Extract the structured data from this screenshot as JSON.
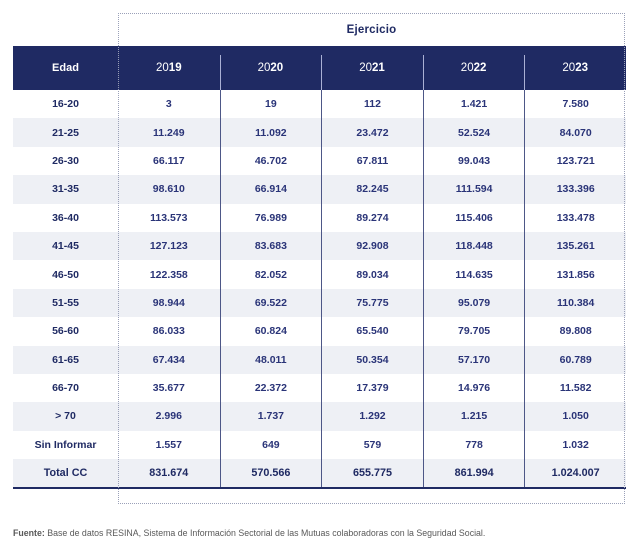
{
  "table": {
    "group_header": "Ejercicio",
    "edad_header": "Edad",
    "years": [
      {
        "light": "20",
        "bold": "19"
      },
      {
        "light": "20",
        "bold": "20"
      },
      {
        "light": "20",
        "bold": "21"
      },
      {
        "light": "20",
        "bold": "22"
      },
      {
        "light": "20",
        "bold": "23"
      }
    ],
    "rows": [
      {
        "label": "16-20",
        "values": [
          "3",
          "19",
          "112",
          "1.421",
          "7.580"
        ]
      },
      {
        "label": "21-25",
        "values": [
          "11.249",
          "11.092",
          "23.472",
          "52.524",
          "84.070"
        ]
      },
      {
        "label": "26-30",
        "values": [
          "66.117",
          "46.702",
          "67.811",
          "99.043",
          "123.721"
        ]
      },
      {
        "label": "31-35",
        "values": [
          "98.610",
          "66.914",
          "82.245",
          "111.594",
          "133.396"
        ]
      },
      {
        "label": "36-40",
        "values": [
          "113.573",
          "76.989",
          "89.274",
          "115.406",
          "133.478"
        ]
      },
      {
        "label": "41-45",
        "values": [
          "127.123",
          "83.683",
          "92.908",
          "118.448",
          "135.261"
        ]
      },
      {
        "label": "46-50",
        "values": [
          "122.358",
          "82.052",
          "89.034",
          "114.635",
          "131.856"
        ]
      },
      {
        "label": "51-55",
        "values": [
          "98.944",
          "69.522",
          "75.775",
          "95.079",
          "110.384"
        ]
      },
      {
        "label": "56-60",
        "values": [
          "86.033",
          "60.824",
          "65.540",
          "79.705",
          "89.808"
        ]
      },
      {
        "label": "61-65",
        "values": [
          "67.434",
          "48.011",
          "50.354",
          "57.170",
          "60.789"
        ]
      },
      {
        "label": "66-70",
        "values": [
          "35.677",
          "22.372",
          "17.379",
          "14.976",
          "11.582"
        ]
      },
      {
        "label": "> 70",
        "values": [
          "2.996",
          "1.737",
          "1.292",
          "1.215",
          "1.050"
        ]
      },
      {
        "label": "Sin Informar",
        "values": [
          "1.557",
          "649",
          "579",
          "778",
          "1.032"
        ]
      },
      {
        "label": "Total CC",
        "values": [
          "831.674",
          "570.566",
          "655.775",
          "861.994",
          "1.024.007"
        ],
        "total": true
      }
    ]
  },
  "footer": {
    "label": "Fuente:",
    "text": " Base de datos RESINA, Sistema de Información Sectorial de las Mutuas colaboradoras con la Seguridad Social."
  },
  "colors": {
    "navy": "#1f2a63",
    "num": "#2a3478",
    "stripe": "#eef0f5",
    "divider": "#4d5787",
    "hdr-divider": "#aab0d4",
    "dotted": "#9aa0b8",
    "footer": "#595959"
  }
}
